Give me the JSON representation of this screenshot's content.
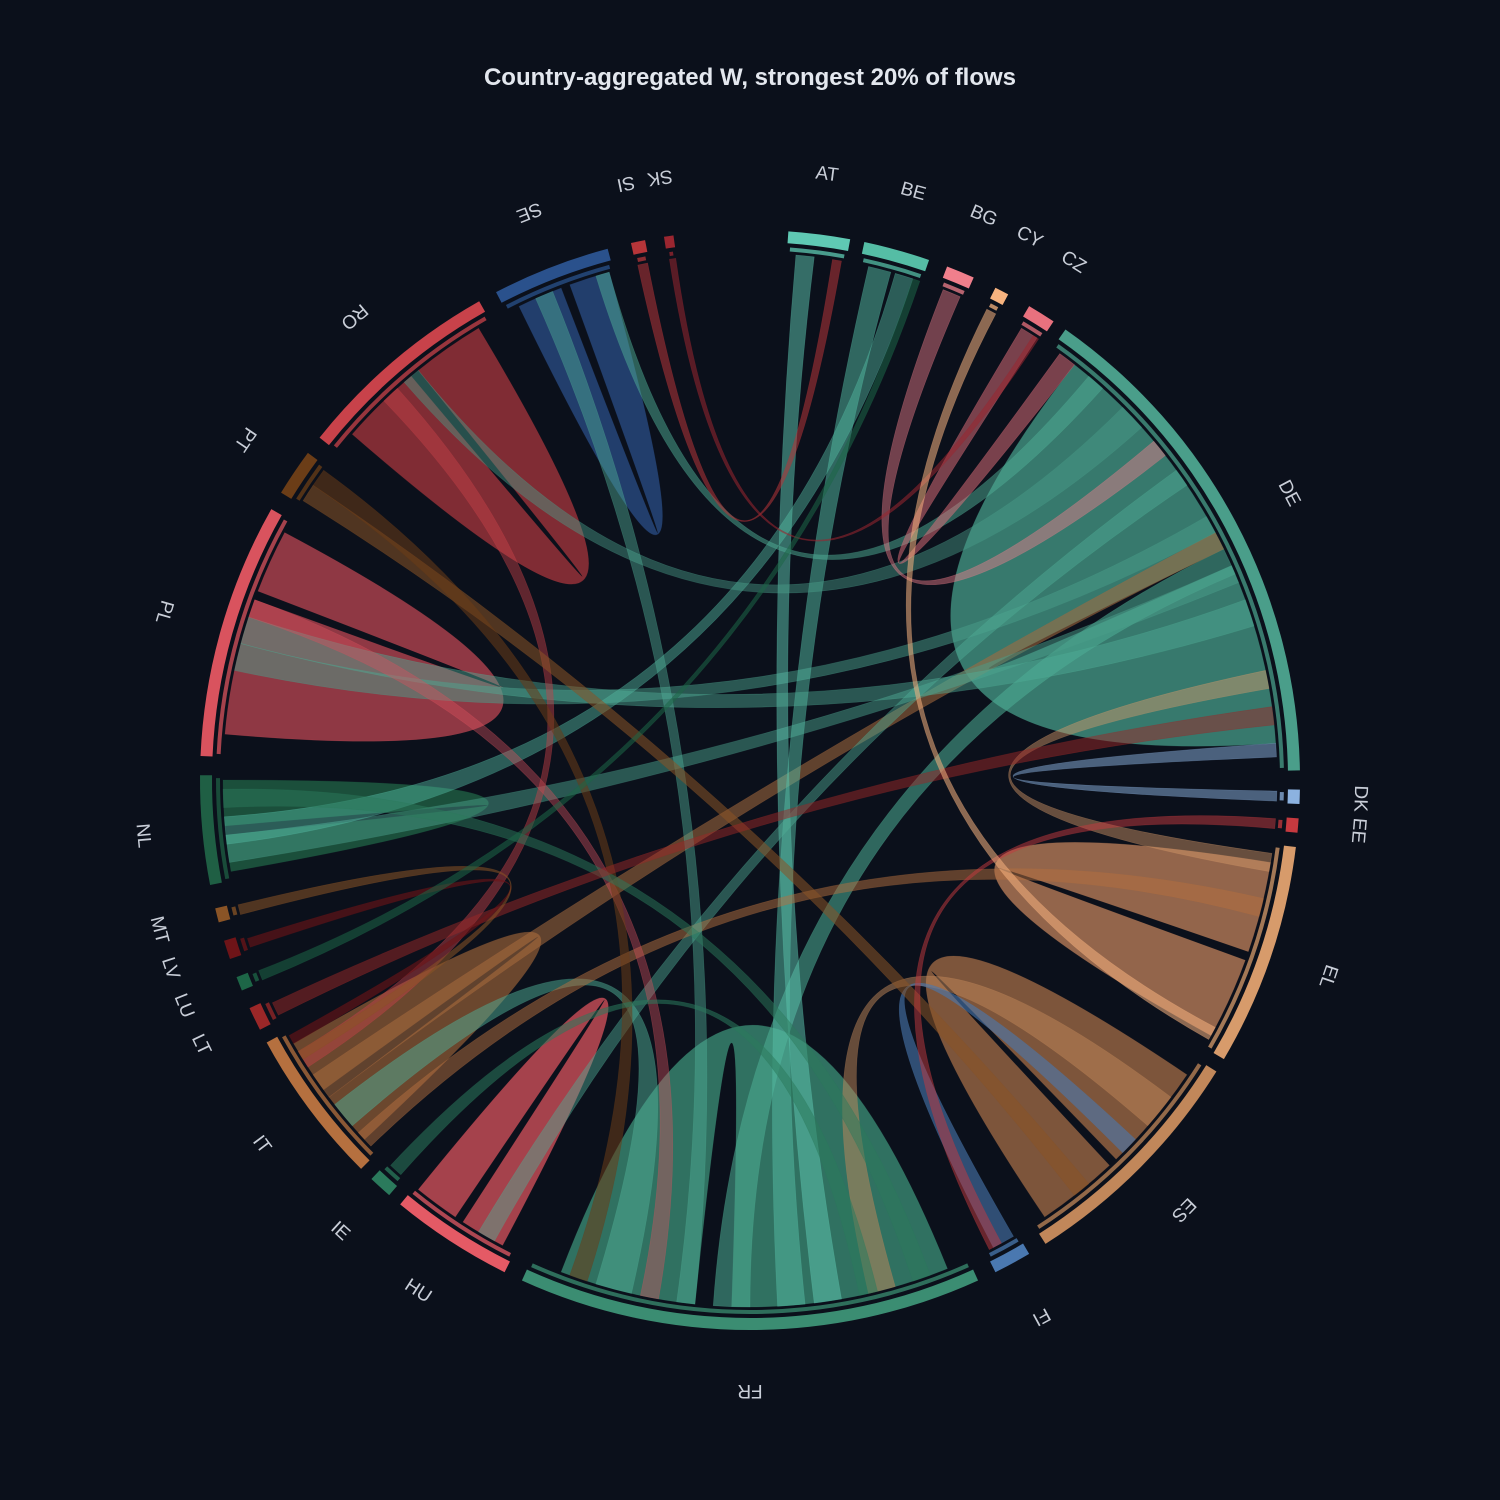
{
  "chart_data": {
    "type": "chord",
    "title": "Country-aggregated W, strongest 20% of flows",
    "background": "#0b101b",
    "groups": [
      {
        "label": "AT",
        "start": 4.0,
        "end": 10.5,
        "color": "#5fc9b3"
      },
      {
        "label": "BE",
        "start": 12.0,
        "end": 19.0,
        "color": "#55bda5"
      },
      {
        "label": "BG",
        "start": 21.0,
        "end": 24.0,
        "color": "#f07f8c"
      },
      {
        "label": "CY",
        "start": 26.5,
        "end": 28.0,
        "color": "#f7b37f"
      },
      {
        "label": "CZ",
        "start": 30.5,
        "end": 33.5,
        "color": "#e8717e"
      },
      {
        "label": "DE",
        "start": 35.0,
        "end": 89.0,
        "color": "#4a9e8a"
      },
      {
        "label": "DK",
        "start": 91.0,
        "end": 92.5,
        "color": "#8cb2e0"
      },
      {
        "label": "EE",
        "start": 94.0,
        "end": 95.5,
        "color": "#c6393f"
      },
      {
        "label": "EL",
        "start": 97.0,
        "end": 120.5,
        "color": "#d79b6b"
      },
      {
        "label": "ES",
        "start": 122.0,
        "end": 147.5,
        "color": "#c1875a"
      },
      {
        "label": "FI",
        "start": 149.5,
        "end": 153.5,
        "color": "#4a78b0"
      },
      {
        "label": "FR",
        "start": 155.5,
        "end": 204.5,
        "color": "#3b8d72"
      },
      {
        "label": "HU",
        "start": 206.5,
        "end": 219.5,
        "color": "#e45a65"
      },
      {
        "label": "IE",
        "start": 221.0,
        "end": 223.5,
        "color": "#2b7a5c"
      },
      {
        "label": "IT",
        "start": 225.0,
        "end": 241.5,
        "color": "#b5703f"
      },
      {
        "label": "LT",
        "start": 243.0,
        "end": 245.5,
        "color": "#9b2728"
      },
      {
        "label": "LU",
        "start": 247.5,
        "end": 249.0,
        "color": "#1d6647"
      },
      {
        "label": "LV",
        "start": 251.0,
        "end": 253.0,
        "color": "#6e1418"
      },
      {
        "label": "MT",
        "start": 255.0,
        "end": 256.5,
        "color": "#8a5426"
      },
      {
        "label": "NL",
        "start": 259.0,
        "end": 270.5,
        "color": "#1f5f44"
      },
      {
        "label": "PL",
        "start": 272.5,
        "end": 299.5,
        "color": "#d9535e"
      },
      {
        "label": "PT",
        "start": 301.5,
        "end": 306.5,
        "color": "#6b3d17"
      },
      {
        "label": "RO",
        "start": 308.5,
        "end": 330.5,
        "color": "#c8424a"
      },
      {
        "label": "SE",
        "start": 332.5,
        "end": 345.0,
        "color": "#2a518c"
      },
      {
        "label": "SI",
        "start": 347.5,
        "end": 349.0,
        "color": "#b63539"
      },
      {
        "label": "SK",
        "start": 351.0,
        "end": 352.0,
        "color": "#9b2630"
      }
    ],
    "self_ribbons": [
      {
        "group": "DE",
        "from": [
          38,
          64
        ],
        "to": [
          66,
          86
        ],
        "color": "#3f8c7b",
        "opacity": 0.85
      },
      {
        "group": "FR",
        "from": [
          158,
          182
        ],
        "to": [
          186,
          201
        ],
        "color": "#3a8a73",
        "opacity": 0.8
      },
      {
        "group": "PL",
        "from": [
          275,
          290
        ],
        "to": [
          291,
          298
        ],
        "color": "#c74a55",
        "opacity": 0.7
      },
      {
        "group": "RO",
        "from": [
          311,
          320
        ],
        "to": [
          321,
          329
        ],
        "color": "#a8353d",
        "opacity": 0.75
      },
      {
        "group": "EL",
        "from": [
          99,
          109
        ],
        "to": [
          110,
          119
        ],
        "color": "#b57a57",
        "opacity": 0.8
      },
      {
        "group": "ES",
        "from": [
          124,
          136
        ],
        "to": [
          137,
          146
        ],
        "color": "#9a6644",
        "opacity": 0.8
      },
      {
        "group": "HU",
        "from": [
          208,
          213
        ],
        "to": [
          214,
          219
        ],
        "color": "#d9535e",
        "opacity": 0.75
      },
      {
        "group": "SE",
        "from": [
          334,
          339
        ],
        "to": [
          340,
          344.5
        ],
        "color": "#27477a",
        "opacity": 0.85
      },
      {
        "group": "NL",
        "from": [
          260,
          264
        ],
        "to": [
          265,
          270
        ],
        "color": "#1f5f44",
        "opacity": 0.8
      },
      {
        "group": "IT",
        "from": [
          227,
          233
        ],
        "to": [
          234,
          240
        ],
        "color": "#8c5a35",
        "opacity": 0.75
      }
    ],
    "ribbons": [
      {
        "from": "DE",
        "to": "FR",
        "src": [
          64,
          67
        ],
        "dst": [
          180,
          184
        ],
        "color": "#4fae96",
        "opacity": 0.55
      },
      {
        "from": "DE",
        "to": "IT",
        "src": [
          62,
          64
        ],
        "dst": [
          233,
          236
        ],
        "color": "#a86b3e",
        "opacity": 0.55
      },
      {
        "from": "DE",
        "to": "NL",
        "src": [
          66,
          68
        ],
        "dst": [
          261,
          264
        ],
        "color": "#4a9e8a",
        "opacity": 0.5
      },
      {
        "from": "DE",
        "to": "PL",
        "src": [
          60,
          62
        ],
        "dst": [
          282,
          285
        ],
        "color": "#4a9e8a",
        "opacity": 0.5
      },
      {
        "from": "AT",
        "to": "FR",
        "src": [
          5,
          7
        ],
        "dst": [
          170,
          173
        ],
        "color": "#5fc9b3",
        "opacity": 0.5
      },
      {
        "from": "BE",
        "to": "FR",
        "src": [
          13,
          15.5
        ],
        "dst": [
          174,
          177
        ],
        "color": "#55bda5",
        "opacity": 0.5
      },
      {
        "from": "BE",
        "to": "NL",
        "src": [
          16,
          18
        ],
        "dst": [
          263,
          266
        ],
        "color": "#55bda5",
        "opacity": 0.45
      },
      {
        "from": "ES",
        "to": "FR",
        "src": [
          127,
          131
        ],
        "dst": [
          164,
          167
        ],
        "color": "#c1875a",
        "opacity": 0.5
      },
      {
        "from": "EL",
        "to": "DE",
        "src": [
          98,
          100
        ],
        "dst": [
          78,
          80
        ],
        "color": "#d79b6b",
        "opacity": 0.45
      },
      {
        "from": "FI",
        "to": "ES",
        "src": [
          150,
          152.5
        ],
        "dst": [
          133,
          135
        ],
        "color": "#4a78b0",
        "opacity": 0.6
      },
      {
        "from": "HU",
        "to": "DE",
        "src": [
          209,
          211
        ],
        "dst": [
          54,
          56
        ],
        "color": "#4fae96",
        "opacity": 0.45
      },
      {
        "from": "IT",
        "to": "FR",
        "src": [
          229,
          232
        ],
        "dst": [
          193,
          197
        ],
        "color": "#4fae96",
        "opacity": 0.5
      },
      {
        "from": "IT",
        "to": "EL",
        "src": [
          226,
          228
        ],
        "dst": [
          103,
          105
        ],
        "color": "#b5703f",
        "opacity": 0.5
      },
      {
        "from": "PL",
        "to": "DE",
        "src": [
          285,
          288
        ],
        "dst": [
          70,
          73
        ],
        "color": "#4fae96",
        "opacity": 0.45
      },
      {
        "from": "PL",
        "to": "FR",
        "src": [
          288,
          290
        ],
        "dst": [
          190,
          192
        ],
        "color": "#d9535e",
        "opacity": 0.4
      },
      {
        "from": "RO",
        "to": "DE",
        "src": [
          319,
          321
        ],
        "dst": [
          45,
          48
        ],
        "color": "#4a9e8a",
        "opacity": 0.45
      },
      {
        "from": "RO",
        "to": "IT",
        "src": [
          316,
          318
        ],
        "dst": [
          237,
          239
        ],
        "color": "#c8424a",
        "opacity": 0.45
      },
      {
        "from": "SE",
        "to": "DE",
        "src": [
          343,
          344.5
        ],
        "dst": [
          40,
          42
        ],
        "color": "#4fae96",
        "opacity": 0.5
      },
      {
        "from": "SE",
        "to": "FR",
        "src": [
          336,
          338
        ],
        "dst": [
          186,
          188
        ],
        "color": "#4fae96",
        "opacity": 0.45
      },
      {
        "from": "PT",
        "to": "ES",
        "src": [
          302,
          304
        ],
        "dst": [
          140,
          142
        ],
        "color": "#8a5426",
        "opacity": 0.55
      },
      {
        "from": "PT",
        "to": "FR",
        "src": [
          304,
          306
        ],
        "dst": [
          198,
          200
        ],
        "color": "#6b3d17",
        "opacity": 0.55
      },
      {
        "from": "NL",
        "to": "FR",
        "src": [
          267,
          269
        ],
        "dst": [
          160,
          162
        ],
        "color": "#2b7a5c",
        "opacity": 0.5
      },
      {
        "from": "CZ",
        "to": "DE",
        "src": [
          31,
          33
        ],
        "dst": [
          36,
          38
        ],
        "color": "#e8717e",
        "opacity": 0.5
      },
      {
        "from": "BG",
        "to": "DE",
        "src": [
          21.5,
          23.5
        ],
        "dst": [
          50,
          52
        ],
        "color": "#f07f8c",
        "opacity": 0.45
      },
      {
        "from": "IE",
        "to": "FR",
        "src": [
          221.5,
          223
        ],
        "dst": [
          166,
          168
        ],
        "color": "#2b7a5c",
        "opacity": 0.55
      },
      {
        "from": "LT",
        "to": "DE",
        "src": [
          243.5,
          245
        ],
        "dst": [
          82,
          84
        ],
        "color": "#9b2728",
        "opacity": 0.5
      },
      {
        "from": "LV",
        "to": "IT",
        "src": [
          251.5,
          252.5
        ],
        "dst": [
          240,
          241
        ],
        "color": "#6e1418",
        "opacity": 0.6
      },
      {
        "from": "EE",
        "to": "FI",
        "src": [
          94.2,
          95.3
        ],
        "dst": [
          151.5,
          153
        ],
        "color": "#c6393f",
        "opacity": 0.5
      },
      {
        "from": "DK",
        "to": "DE",
        "src": [
          91.2,
          92.3
        ],
        "dst": [
          86,
          87.5
        ],
        "color": "#8cb2e0",
        "opacity": 0.5
      },
      {
        "from": "SI",
        "to": "AT",
        "src": [
          347.7,
          348.8
        ],
        "dst": [
          9,
          10
        ],
        "color": "#b63539",
        "opacity": 0.55
      },
      {
        "from": "SK",
        "to": "CZ",
        "src": [
          351.2,
          351.9
        ],
        "dst": [
          32.5,
          33.2
        ],
        "color": "#9b2630",
        "opacity": 0.55
      },
      {
        "from": "MT",
        "to": "IT",
        "src": [
          255.2,
          256.3
        ],
        "dst": [
          238,
          239
        ],
        "color": "#8a5426",
        "opacity": 0.55
      },
      {
        "from": "LU",
        "to": "BE",
        "src": [
          247.7,
          248.8
        ],
        "dst": [
          18,
          18.8
        ],
        "color": "#1d6647",
        "opacity": 0.55
      },
      {
        "from": "CY",
        "to": "EL",
        "src": [
          26.7,
          27.8
        ],
        "dst": [
          118,
          119.5
        ],
        "color": "#f7b37f",
        "opacity": 0.55
      }
    ]
  }
}
